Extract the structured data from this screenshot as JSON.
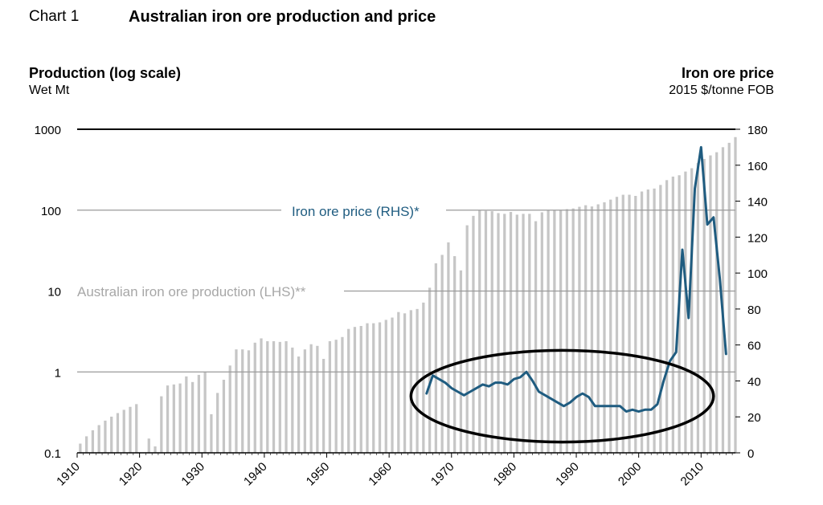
{
  "header": {
    "chart_number": "Chart 1",
    "title": "Australian iron ore production and price",
    "lhs_title": "Production (log scale)",
    "lhs_unit": "Wet Mt",
    "rhs_title": "Iron ore price",
    "rhs_unit": "2015 $/tonne FOB"
  },
  "colors": {
    "production_bars": "#c6c6c6",
    "price_line": "#1f5c80",
    "annotation_ellipse": "#000000",
    "gridline": "#9a9a9a"
  },
  "chart_data": {
    "type": "bar+line",
    "title": "Australian iron ore production and price",
    "x_ticks": [
      "1910",
      "1920",
      "1930",
      "1940",
      "1950",
      "1960",
      "1970",
      "1980",
      "1990",
      "2000",
      "2010"
    ],
    "left_axis": {
      "label": "Production (log scale)",
      "unit": "Wet Mt",
      "scale": "log",
      "range": [
        0.1,
        1000
      ],
      "ticks": [
        "0.1",
        "1",
        "10",
        "100",
        "1000"
      ]
    },
    "right_axis": {
      "label": "Iron ore price",
      "unit": "2015 $/tonne FOB",
      "range": [
        0,
        180
      ],
      "ticks": [
        "0",
        "20",
        "40",
        "60",
        "80",
        "100",
        "120",
        "140",
        "160",
        "180"
      ]
    },
    "series": [
      {
        "name": "Australian iron ore production (LHS)**",
        "legend_label": "Australian iron ore production (LHS)**",
        "kind": "bar",
        "axis": "left",
        "years": [
          1910,
          1911,
          1912,
          1913,
          1914,
          1915,
          1916,
          1917,
          1918,
          1919,
          1920,
          1921,
          1922,
          1923,
          1924,
          1925,
          1926,
          1927,
          1928,
          1929,
          1930,
          1931,
          1932,
          1933,
          1934,
          1935,
          1936,
          1937,
          1938,
          1939,
          1940,
          1941,
          1942,
          1943,
          1944,
          1945,
          1946,
          1947,
          1948,
          1949,
          1950,
          1951,
          1952,
          1953,
          1954,
          1955,
          1956,
          1957,
          1958,
          1959,
          1960,
          1961,
          1962,
          1963,
          1964,
          1965,
          1966,
          1967,
          1968,
          1969,
          1970,
          1971,
          1972,
          1973,
          1974,
          1975,
          1976,
          1977,
          1978,
          1979,
          1980,
          1981,
          1982,
          1983,
          1984,
          1985,
          1986,
          1987,
          1988,
          1989,
          1990,
          1991,
          1992,
          1993,
          1994,
          1995,
          1996,
          1997,
          1998,
          1999,
          2000,
          2001,
          2002,
          2003,
          2004,
          2005,
          2006,
          2007,
          2008,
          2009,
          2010,
          2011,
          2012,
          2013,
          2014,
          2015
        ],
        "values": [
          0.13,
          0.16,
          0.19,
          0.22,
          0.25,
          0.28,
          0.31,
          0.34,
          0.37,
          0.4,
          0.1,
          0.15,
          0.12,
          0.5,
          0.68,
          0.7,
          0.72,
          0.88,
          0.75,
          0.92,
          1.0,
          0.3,
          0.55,
          0.8,
          1.2,
          1.9,
          1.9,
          1.85,
          2.3,
          2.6,
          2.4,
          2.4,
          2.35,
          2.4,
          2.0,
          1.55,
          1.9,
          2.2,
          2.1,
          1.45,
          2.4,
          2.5,
          2.7,
          3.4,
          3.6,
          3.7,
          4.0,
          4.0,
          4.1,
          4.4,
          4.7,
          5.5,
          5.3,
          5.8,
          6.0,
          7.2,
          11.0,
          22.0,
          28.0,
          40.0,
          27.0,
          18.0,
          65.0,
          85.0,
          100.0,
          98.0,
          97.0,
          92.0,
          90.0,
          95.0,
          88.0,
          90.0,
          90.0,
          73.0,
          94.0,
          100.0,
          100.0,
          100.0,
          103.0,
          105.0,
          110.0,
          115.0,
          111.0,
          118.0,
          125.0,
          135.0,
          146.0,
          155.0,
          155.0,
          150.0,
          170.0,
          180.0,
          185.0,
          205.0,
          235.0,
          260.0,
          270.0,
          300.0,
          330.0,
          385.0,
          430.0,
          475.0,
          520.0,
          600.0,
          680.0,
          800.0
        ]
      },
      {
        "name": "Iron ore price (RHS)*",
        "legend_label": "Iron ore price (RHS)*",
        "kind": "line",
        "axis": "right",
        "years": [
          1966,
          1967,
          1968,
          1969,
          1970,
          1971,
          1972,
          1973,
          1974,
          1975,
          1976,
          1977,
          1978,
          1979,
          1980,
          1981,
          1982,
          1983,
          1984,
          1985,
          1986,
          1987,
          1988,
          1989,
          1990,
          1991,
          1992,
          1993,
          1994,
          1995,
          1996,
          1997,
          1998,
          1999,
          2000,
          2001,
          2002,
          2003,
          2004,
          2005,
          2006,
          2007,
          2008,
          2009,
          2010,
          2011,
          2012,
          2013,
          2014
        ],
        "values": [
          33,
          43,
          41,
          39,
          36,
          34,
          32,
          34,
          36,
          38,
          37,
          39,
          39,
          38,
          41,
          42,
          45,
          40,
          34,
          32,
          30,
          28,
          26,
          28,
          31,
          33,
          31,
          26,
          26,
          26,
          26,
          26,
          23,
          24,
          23,
          24,
          24,
          27,
          40,
          51,
          56,
          113,
          75,
          147,
          170,
          127,
          131,
          97,
          55
        ]
      }
    ],
    "annotations": [
      {
        "type": "ellipse",
        "description": "highlight",
        "x_range": [
          1963.5,
          2012
        ],
        "y_range_rhs": [
          6,
          57
        ]
      }
    ]
  }
}
